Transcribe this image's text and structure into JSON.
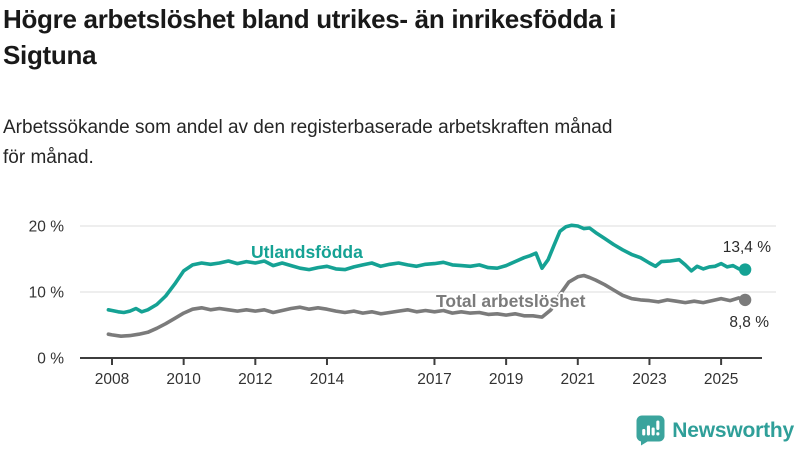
{
  "header": {
    "title_lines": [
      "Högre arbetslöshet bland utrikes- än inrikesfödda i",
      "Sigtuna"
    ],
    "subtitle_lines": [
      "Arbetssökande som andel av den registerbaserade arbetskraften månad",
      "för månad."
    ]
  },
  "chart_data": {
    "type": "line",
    "title": "Högre arbetslöshet bland utrikes- än inrikesfödda i Sigtuna",
    "subtitle": "Arbetssökande som andel av den registerbaserade arbetskraften månad för månad.",
    "unit": "%",
    "xlim": [
      2007.8,
      2025.95
    ],
    "ylim": [
      0,
      21
    ],
    "grid": "horizontal",
    "gridline_color": "#e4e4e4",
    "axis_color": "#3d3d3d",
    "tick_label_color": "#333333",
    "y_ticks": [
      {
        "value": 0,
        "label": "0 %"
      },
      {
        "value": 10,
        "label": "10 %"
      },
      {
        "value": 20,
        "label": "20 %"
      }
    ],
    "x_ticks": [
      {
        "value": 2008,
        "label": "2008"
      },
      {
        "value": 2010,
        "label": "2010"
      },
      {
        "value": 2012,
        "label": "2012"
      },
      {
        "value": 2014,
        "label": "2014"
      },
      {
        "value": 2017,
        "label": "2017"
      },
      {
        "value": 2019,
        "label": "2019"
      },
      {
        "value": 2021,
        "label": "2021"
      },
      {
        "value": 2023,
        "label": "2023"
      },
      {
        "value": 2025,
        "label": "2025"
      }
    ],
    "series": [
      {
        "name": "Utlandsfödda",
        "color": "#15a294",
        "end_label": "13,4 %",
        "last_value": 13.4,
        "points": [
          [
            2007.9,
            7.3
          ],
          [
            2008.0,
            7.2
          ],
          [
            2008.17,
            7.0
          ],
          [
            2008.33,
            6.9
          ],
          [
            2008.5,
            7.1
          ],
          [
            2008.67,
            7.5
          ],
          [
            2008.83,
            7.0
          ],
          [
            2009.0,
            7.3
          ],
          [
            2009.25,
            8.1
          ],
          [
            2009.5,
            9.4
          ],
          [
            2009.75,
            11.2
          ],
          [
            2010.0,
            13.2
          ],
          [
            2010.25,
            14.1
          ],
          [
            2010.5,
            14.4
          ],
          [
            2010.75,
            14.2
          ],
          [
            2011.0,
            14.4
          ],
          [
            2011.25,
            14.7
          ],
          [
            2011.5,
            14.3
          ],
          [
            2011.75,
            14.6
          ],
          [
            2012.0,
            14.4
          ],
          [
            2012.25,
            14.7
          ],
          [
            2012.5,
            14.0
          ],
          [
            2012.75,
            14.4
          ],
          [
            2013.0,
            14.0
          ],
          [
            2013.25,
            13.6
          ],
          [
            2013.5,
            13.4
          ],
          [
            2013.75,
            13.7
          ],
          [
            2014.0,
            13.9
          ],
          [
            2014.25,
            13.5
          ],
          [
            2014.5,
            13.4
          ],
          [
            2014.75,
            13.8
          ],
          [
            2015.0,
            14.1
          ],
          [
            2015.25,
            14.4
          ],
          [
            2015.5,
            13.9
          ],
          [
            2015.75,
            14.2
          ],
          [
            2016.0,
            14.4
          ],
          [
            2016.25,
            14.1
          ],
          [
            2016.5,
            13.9
          ],
          [
            2016.75,
            14.2
          ],
          [
            2017.0,
            14.3
          ],
          [
            2017.25,
            14.5
          ],
          [
            2017.5,
            14.1
          ],
          [
            2017.75,
            14.0
          ],
          [
            2018.0,
            13.9
          ],
          [
            2018.25,
            14.1
          ],
          [
            2018.5,
            13.7
          ],
          [
            2018.75,
            13.6
          ],
          [
            2019.0,
            14.0
          ],
          [
            2019.25,
            14.6
          ],
          [
            2019.5,
            15.2
          ],
          [
            2019.67,
            15.5
          ],
          [
            2019.83,
            15.9
          ],
          [
            2020.0,
            13.6
          ],
          [
            2020.17,
            14.9
          ],
          [
            2020.33,
            17.0
          ],
          [
            2020.5,
            19.2
          ],
          [
            2020.67,
            19.9
          ],
          [
            2020.83,
            20.1
          ],
          [
            2021.0,
            20.0
          ],
          [
            2021.17,
            19.6
          ],
          [
            2021.33,
            19.7
          ],
          [
            2021.5,
            19.0
          ],
          [
            2021.75,
            18.1
          ],
          [
            2022.0,
            17.2
          ],
          [
            2022.25,
            16.4
          ],
          [
            2022.5,
            15.7
          ],
          [
            2022.75,
            15.2
          ],
          [
            2023.0,
            14.4
          ],
          [
            2023.17,
            13.9
          ],
          [
            2023.33,
            14.6
          ],
          [
            2023.58,
            14.7
          ],
          [
            2023.83,
            14.9
          ],
          [
            2024.0,
            14.1
          ],
          [
            2024.17,
            13.2
          ],
          [
            2024.33,
            13.9
          ],
          [
            2024.5,
            13.5
          ],
          [
            2024.67,
            13.8
          ],
          [
            2024.83,
            13.9
          ],
          [
            2025.0,
            14.3
          ],
          [
            2025.17,
            13.8
          ],
          [
            2025.33,
            14.0
          ],
          [
            2025.5,
            13.5
          ],
          [
            2025.67,
            13.4
          ]
        ]
      },
      {
        "name": "Total arbetslöshet",
        "color": "#7b7b7b",
        "end_label": "8,8 %",
        "last_value": 8.8,
        "points": [
          [
            2007.9,
            3.6
          ],
          [
            2008.0,
            3.5
          ],
          [
            2008.25,
            3.3
          ],
          [
            2008.5,
            3.4
          ],
          [
            2008.75,
            3.6
          ],
          [
            2009.0,
            3.9
          ],
          [
            2009.25,
            4.5
          ],
          [
            2009.5,
            5.2
          ],
          [
            2009.75,
            6.0
          ],
          [
            2010.0,
            6.8
          ],
          [
            2010.25,
            7.4
          ],
          [
            2010.5,
            7.6
          ],
          [
            2010.75,
            7.3
          ],
          [
            2011.0,
            7.5
          ],
          [
            2011.25,
            7.3
          ],
          [
            2011.5,
            7.1
          ],
          [
            2011.75,
            7.3
          ],
          [
            2012.0,
            7.1
          ],
          [
            2012.25,
            7.3
          ],
          [
            2012.5,
            6.9
          ],
          [
            2012.75,
            7.2
          ],
          [
            2013.0,
            7.5
          ],
          [
            2013.25,
            7.7
          ],
          [
            2013.5,
            7.4
          ],
          [
            2013.75,
            7.6
          ],
          [
            2014.0,
            7.4
          ],
          [
            2014.25,
            7.1
          ],
          [
            2014.5,
            6.9
          ],
          [
            2014.75,
            7.1
          ],
          [
            2015.0,
            6.8
          ],
          [
            2015.25,
            7.0
          ],
          [
            2015.5,
            6.7
          ],
          [
            2015.75,
            6.9
          ],
          [
            2016.0,
            7.1
          ],
          [
            2016.25,
            7.3
          ],
          [
            2016.5,
            7.0
          ],
          [
            2016.75,
            7.2
          ],
          [
            2017.0,
            7.0
          ],
          [
            2017.25,
            7.2
          ],
          [
            2017.5,
            6.8
          ],
          [
            2017.75,
            7.0
          ],
          [
            2018.0,
            6.8
          ],
          [
            2018.25,
            6.9
          ],
          [
            2018.5,
            6.6
          ],
          [
            2018.75,
            6.7
          ],
          [
            2019.0,
            6.5
          ],
          [
            2019.25,
            6.7
          ],
          [
            2019.5,
            6.4
          ],
          [
            2019.75,
            6.4
          ],
          [
            2020.0,
            6.2
          ],
          [
            2020.25,
            7.3
          ],
          [
            2020.5,
            9.6
          ],
          [
            2020.75,
            11.5
          ],
          [
            2021.0,
            12.3
          ],
          [
            2021.17,
            12.5
          ],
          [
            2021.33,
            12.2
          ],
          [
            2021.5,
            11.8
          ],
          [
            2021.75,
            11.1
          ],
          [
            2022.0,
            10.3
          ],
          [
            2022.25,
            9.5
          ],
          [
            2022.5,
            9.0
          ],
          [
            2022.75,
            8.8
          ],
          [
            2023.0,
            8.7
          ],
          [
            2023.25,
            8.5
          ],
          [
            2023.5,
            8.8
          ],
          [
            2023.75,
            8.6
          ],
          [
            2024.0,
            8.4
          ],
          [
            2024.25,
            8.6
          ],
          [
            2024.5,
            8.4
          ],
          [
            2024.75,
            8.7
          ],
          [
            2025.0,
            9.0
          ],
          [
            2025.25,
            8.7
          ],
          [
            2025.5,
            9.1
          ],
          [
            2025.67,
            8.8
          ]
        ]
      }
    ]
  },
  "footer": {
    "brand": "Newsworthy",
    "brand_color": "#2f9f99",
    "logo_color": "#3ba49d"
  }
}
